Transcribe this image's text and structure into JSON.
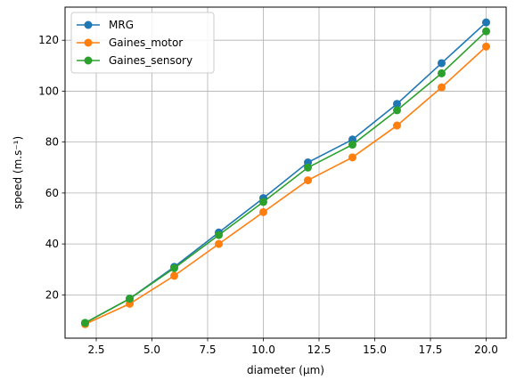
{
  "chart_data": {
    "type": "line",
    "xlabel": "diameter (μm)",
    "ylabel": "speed (m.s⁻¹)",
    "xlim": [
      1.1,
      20.9
    ],
    "ylim": [
      3,
      133
    ],
    "grid": true,
    "legend_position": "top-left",
    "x_ticks": [
      2.5,
      5.0,
      7.5,
      10.0,
      12.5,
      15.0,
      17.5,
      20.0
    ],
    "x_tick_labels": [
      "2.5",
      "5.0",
      "7.5",
      "10.0",
      "12.5",
      "15.0",
      "17.5",
      "20.0"
    ],
    "y_ticks": [
      20,
      40,
      60,
      80,
      100,
      120
    ],
    "y_tick_labels": [
      "20",
      "40",
      "60",
      "80",
      "100",
      "120"
    ],
    "x": [
      2,
      4,
      6,
      8,
      10,
      12,
      14,
      16,
      18,
      20
    ],
    "series": [
      {
        "name": "MRG",
        "color": "#1f77b4",
        "values": [
          9.0,
          18.5,
          31.0,
          44.5,
          58.0,
          72.0,
          81.0,
          95.0,
          111.0,
          127.0
        ]
      },
      {
        "name": "Gaines_motor",
        "color": "#ff7f0e",
        "values": [
          8.5,
          16.5,
          27.5,
          40.0,
          52.5,
          65.0,
          74.0,
          86.5,
          101.5,
          117.5
        ]
      },
      {
        "name": "Gaines_sensory",
        "color": "#2ca02c",
        "values": [
          9.0,
          18.5,
          30.5,
          43.5,
          56.5,
          70.0,
          79.0,
          92.5,
          107.0,
          123.5
        ]
      }
    ]
  }
}
